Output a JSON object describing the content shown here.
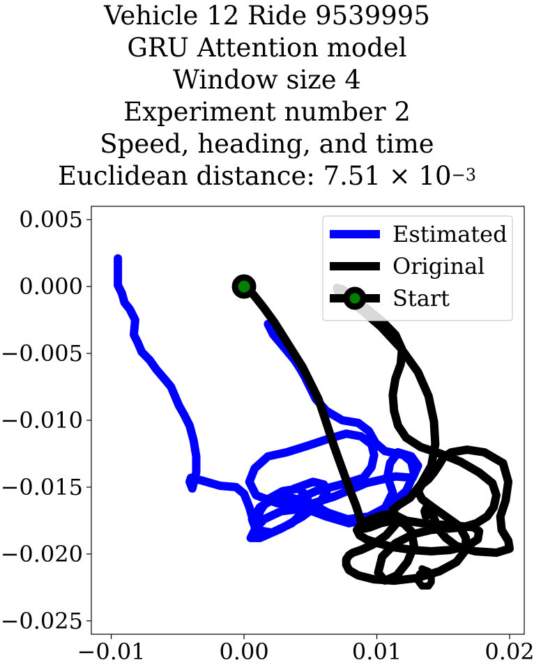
{
  "chart_data": {
    "type": "line",
    "title_lines": [
      "Vehicle 12 Ride 9539995",
      "GRU Attention model",
      "Window size 4",
      "Experiment number 2",
      "Speed, heading, and time"
    ],
    "distance_label": "Euclidean distance: 7.51",
    "distance_exponent_base": "10",
    "distance_exponent": "−3",
    "xlim": [
      -0.0115,
      0.0211
    ],
    "ylim": [
      -0.026,
      0.006
    ],
    "x_ticks": [
      -0.01,
      0.0,
      0.01,
      0.02
    ],
    "x_tick_labels": [
      "−0.01",
      "0.00",
      "0.01",
      "0.02"
    ],
    "y_ticks": [
      0.005,
      0.0,
      -0.005,
      -0.01,
      -0.015,
      -0.02,
      -0.025
    ],
    "y_tick_labels": [
      "0.005",
      "0.000",
      "−0.005",
      "−0.010",
      "−0.015",
      "−0.020",
      "−0.025"
    ],
    "legend_position": "upper-right",
    "series": [
      {
        "name": "Estimated",
        "color": "#0000ff",
        "x": [
          0.0018,
          0.0022,
          0.0028,
          0.0033,
          0.0038,
          0.0042,
          0.0046,
          0.005,
          0.0054,
          0.0062,
          0.0074,
          0.0086,
          0.0094,
          0.0099,
          0.0106,
          0.012,
          0.0126,
          0.0128,
          0.0122,
          0.0109,
          0.0094,
          0.0078,
          0.0063,
          0.005,
          0.0036,
          0.003,
          0.0029,
          0.0034,
          0.0054,
          0.0077,
          0.009,
          0.0096,
          0.0098,
          0.0096,
          0.0088,
          0.0077,
          0.0063,
          0.0048,
          0.0032,
          0.0018,
          0.0008,
          0.0004,
          0.0009,
          0.0025,
          0.0046,
          0.0068,
          0.0092,
          0.0114,
          0.0127,
          0.0131,
          0.0126,
          0.0116,
          0.011,
          0.0108,
          0.0112,
          0.0106,
          0.0093,
          0.0079,
          0.0062,
          0.0046,
          0.0028,
          0.0015,
          0.0008,
          0.0005,
          0.0012,
          0.0028,
          0.0044,
          0.0056,
          0.0062,
          0.006,
          0.0052,
          0.0038,
          0.0024,
          0.0012,
          0.0006,
          0.0009,
          0.0021,
          0.0036,
          0.0046,
          0.0048,
          0.0041,
          0.0029,
          0.0018,
          0.0012,
          0.001,
          0.0006,
          0.0004,
          0.0,
          -0.0006,
          -0.0018,
          -0.0032,
          -0.004,
          -0.0041,
          -0.0039,
          -0.0036,
          -0.0036,
          -0.0038,
          -0.0041,
          -0.0045,
          -0.0049,
          -0.0052,
          -0.0055,
          -0.006,
          -0.0066,
          -0.0071,
          -0.0077,
          -0.008,
          -0.0083,
          -0.0082,
          -0.0086,
          -0.009,
          -0.0092,
          -0.0095,
          -0.0095
        ],
        "y": [
          -0.0028,
          -0.0036,
          -0.0043,
          -0.0049,
          -0.0055,
          -0.0061,
          -0.0068,
          -0.0076,
          -0.0084,
          -0.0093,
          -0.01,
          -0.0102,
          -0.0108,
          -0.0117,
          -0.0123,
          -0.0126,
          -0.0131,
          -0.014,
          -0.0153,
          -0.0164,
          -0.0172,
          -0.0174,
          -0.0169,
          -0.0162,
          -0.0158,
          -0.0159,
          -0.0163,
          -0.0162,
          -0.0153,
          -0.0147,
          -0.0143,
          -0.0135,
          -0.0126,
          -0.0118,
          -0.0112,
          -0.011,
          -0.0114,
          -0.0119,
          -0.0124,
          -0.0127,
          -0.0136,
          -0.0146,
          -0.0156,
          -0.0162,
          -0.0164,
          -0.0157,
          -0.0147,
          -0.0142,
          -0.0143,
          -0.0134,
          -0.0127,
          -0.0124,
          -0.0132,
          -0.0142,
          -0.0154,
          -0.0166,
          -0.0174,
          -0.0177,
          -0.0172,
          -0.0166,
          -0.0168,
          -0.0174,
          -0.0182,
          -0.0188,
          -0.0188,
          -0.0181,
          -0.0172,
          -0.0163,
          -0.0154,
          -0.0148,
          -0.0146,
          -0.0151,
          -0.0158,
          -0.0165,
          -0.0174,
          -0.0182,
          -0.0184,
          -0.0177,
          -0.0167,
          -0.0157,
          -0.0151,
          -0.0153,
          -0.0159,
          -0.0168,
          -0.0177,
          -0.0172,
          -0.0165,
          -0.0155,
          -0.015,
          -0.0149,
          -0.0145,
          -0.0143,
          -0.0146,
          -0.0151,
          -0.0139,
          -0.0127,
          -0.0115,
          -0.0104,
          -0.0096,
          -0.0089,
          -0.0082,
          -0.0075,
          -0.0069,
          -0.0062,
          -0.0055,
          -0.0049,
          -0.0042,
          -0.0036,
          -0.0025,
          -0.0017,
          -0.0012,
          -0.0005,
          0.0001,
          0.0021
        ]
      },
      {
        "name": "Original",
        "color": "#000000",
        "x": [
          0.0,
          0.0007,
          0.0015,
          0.0023,
          0.003,
          0.0037,
          0.0044,
          0.005,
          0.0056,
          0.006,
          0.0064,
          0.0068,
          0.0072,
          0.0076,
          0.008,
          0.0084,
          0.0087,
          0.0089,
          0.009,
          0.0091,
          0.0095,
          0.0103,
          0.0112,
          0.012,
          0.0126,
          0.0128,
          0.0123,
          0.0115,
          0.0106,
          0.0101,
          0.0104,
          0.0114,
          0.0128,
          0.0141,
          0.0154,
          0.0165,
          0.0175,
          0.0183,
          0.0188,
          0.019,
          0.0187,
          0.0177,
          0.0163,
          0.0148,
          0.0133,
          0.0122,
          0.0116,
          0.0113,
          0.0112,
          0.0114,
          0.0118,
          0.0119,
          0.0114,
          0.0104,
          0.0093,
          0.0082,
          0.0074,
          0.007,
          0.0071,
          0.0078,
          0.0089,
          0.0103,
          0.0118,
          0.0131,
          0.0139,
          0.0143,
          0.0144,
          0.0141,
          0.0133,
          0.0125,
          0.0117,
          0.0112,
          0.0114,
          0.0122,
          0.0134,
          0.0148,
          0.0162,
          0.0173,
          0.0177,
          0.0176,
          0.0168,
          0.0155,
          0.0141,
          0.0127,
          0.0113,
          0.0101,
          0.0092,
          0.0087,
          0.0085,
          0.0088,
          0.0095,
          0.0104,
          0.0112,
          0.0116,
          0.0114,
          0.0107,
          0.0097,
          0.0088,
          0.0082,
          0.0079,
          0.0077,
          0.0077,
          0.0079,
          0.0086,
          0.0098,
          0.0113,
          0.013,
          0.0147,
          0.016,
          0.0167,
          0.0167,
          0.0162,
          0.0152,
          0.0142,
          0.0134,
          0.0131,
          0.0134,
          0.0139,
          0.0143,
          0.0147,
          0.015,
          0.0156,
          0.0168,
          0.0181,
          0.0195,
          0.0199,
          0.0197,
          0.0193,
          0.0194,
          0.0199,
          0.02,
          0.019,
          0.0174,
          0.016,
          0.0152,
          0.0146,
          0.0143,
          0.014,
          0.0138,
          0.0136,
          0.0137
        ],
        "y": [
          0.0,
          -0.0006,
          -0.0016,
          -0.0027,
          -0.0038,
          -0.0049,
          -0.006,
          -0.0072,
          -0.0084,
          -0.0096,
          -0.0108,
          -0.012,
          -0.0131,
          -0.0142,
          -0.0153,
          -0.0163,
          -0.0172,
          -0.0178,
          -0.0181,
          -0.0181,
          -0.018,
          -0.0177,
          -0.0175,
          -0.0177,
          -0.0183,
          -0.0194,
          -0.0206,
          -0.0216,
          -0.022,
          -0.0214,
          -0.0202,
          -0.0192,
          -0.0185,
          -0.0182,
          -0.0181,
          -0.018,
          -0.0177,
          -0.0172,
          -0.0165,
          -0.0156,
          -0.0147,
          -0.0139,
          -0.0131,
          -0.0125,
          -0.012,
          -0.0113,
          -0.0104,
          -0.0093,
          -0.0081,
          -0.0069,
          -0.0058,
          -0.0047,
          -0.0036,
          -0.0026,
          -0.0017,
          -0.0008,
          -0.0002,
          -0.0001,
          -0.0004,
          -0.001,
          -0.0018,
          -0.003,
          -0.0046,
          -0.0064,
          -0.0082,
          -0.0101,
          -0.0118,
          -0.0134,
          -0.0148,
          -0.0158,
          -0.0163,
          -0.0167,
          -0.0171,
          -0.0175,
          -0.0177,
          -0.0178,
          -0.0179,
          -0.018,
          -0.0183,
          -0.0189,
          -0.0194,
          -0.0197,
          -0.0198,
          -0.0197,
          -0.0195,
          -0.0192,
          -0.0189,
          -0.0186,
          -0.0182,
          -0.0178,
          -0.0174,
          -0.0171,
          -0.017,
          -0.0172,
          -0.0178,
          -0.0186,
          -0.0193,
          -0.0197,
          -0.0199,
          -0.0201,
          -0.0204,
          -0.0208,
          -0.0212,
          -0.0216,
          -0.0219,
          -0.022,
          -0.0218,
          -0.0213,
          -0.0206,
          -0.0197,
          -0.0188,
          -0.0179,
          -0.0172,
          -0.0165,
          -0.0159,
          -0.0153,
          -0.0148,
          -0.0144,
          -0.0139,
          -0.0133,
          -0.0128,
          -0.0124,
          -0.0122,
          -0.0124,
          -0.0132,
          -0.0146,
          -0.016,
          -0.0172,
          -0.0182,
          -0.019,
          -0.0196,
          -0.0199,
          -0.0198,
          -0.0194,
          -0.0188,
          -0.0181,
          -0.0173,
          -0.0167,
          -0.0164,
          -0.0168,
          -0.0172
        ]
      },
      {
        "name": "Start",
        "color": "#000000",
        "marker_color": "#008000",
        "x": [
          0.0
        ],
        "y": [
          0.0
        ]
      }
    ],
    "extra_loop": {
      "x": [
        0.0136,
        0.0132,
        0.0131,
        0.0134,
        0.0139,
        0.0141,
        0.0141,
        0.0139,
        0.0134
      ],
      "y": [
        -0.0212,
        -0.0215,
        -0.022,
        -0.0224,
        -0.0224,
        -0.0221,
        -0.0217,
        -0.0213,
        -0.0211
      ]
    }
  }
}
